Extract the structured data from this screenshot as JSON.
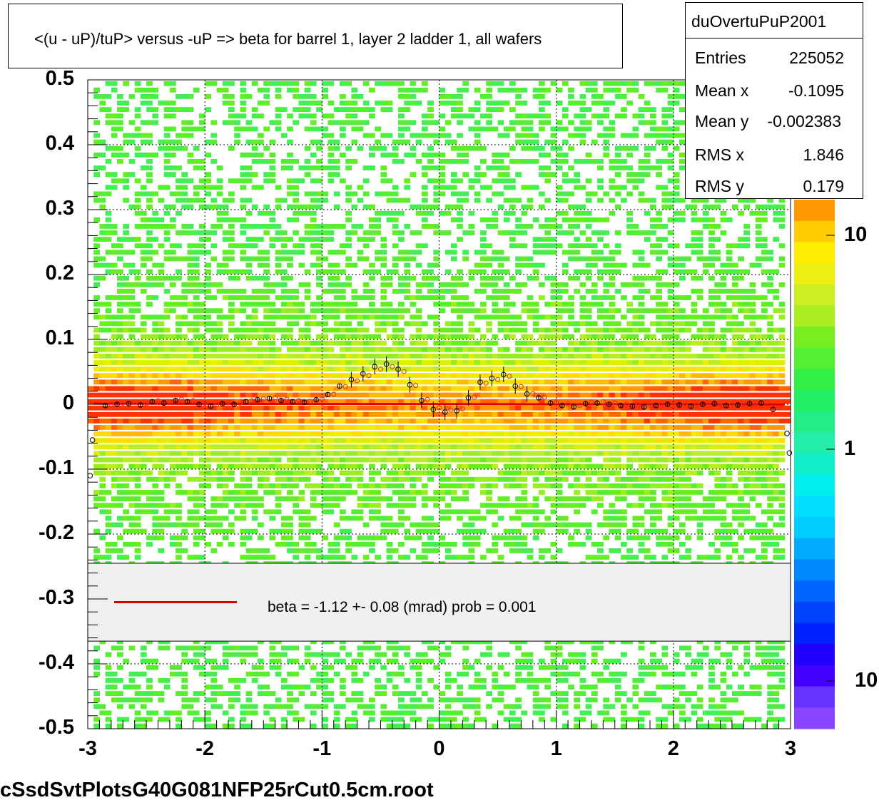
{
  "title": "<(u - uP)/tuP> versus  -uP => beta for barrel 1, layer 2 ladder 1, all wafers",
  "stats": {
    "name": "duOvertuPuP2001",
    "rows": [
      {
        "label": "Entries",
        "value": "225052"
      },
      {
        "label": "Mean x",
        "value": "-0.1095"
      },
      {
        "label": "Mean y",
        "value": "-0.002383"
      },
      {
        "label": "RMS x",
        "value": "1.846"
      },
      {
        "label": "RMS y",
        "value": "0.179"
      }
    ]
  },
  "legend": {
    "text": "beta =   -1.12 +-  0.08 (mrad) prob = 0.001",
    "line_color": "#dd0000"
  },
  "footer": "cSsdSvtPlotsG40G081NFP25rCut0.5cm.root",
  "colors": {
    "fit_line": "#dd0000",
    "grid": "#000000",
    "legend_bg": "#f0f0f0"
  },
  "chart_data": {
    "type": "heatmap",
    "xlim": [
      -3,
      3
    ],
    "ylim": [
      -0.5,
      0.5
    ],
    "x_ticks": [
      "-3",
      "-2",
      "-1",
      "0",
      "1",
      "2",
      "3"
    ],
    "y_ticks": [
      "0.5",
      "0.4",
      "0.3",
      "0.2",
      "0.1",
      "0",
      "-0.1",
      "-0.2",
      "-0.3",
      "-0.4",
      "-0.5"
    ],
    "z_ticks": [
      "10",
      "1",
      "10"
    ],
    "grid": true,
    "fit_line": {
      "x": [
        -2.95,
        2.95
      ],
      "y": [
        0.0009,
        -0.0004
      ]
    },
    "profile": {
      "x": [
        -2.85,
        -2.75,
        -2.65,
        -2.55,
        -2.45,
        -2.35,
        -2.25,
        -2.15,
        -2.05,
        -1.95,
        -1.85,
        -1.75,
        -1.65,
        -1.55,
        -1.45,
        -1.35,
        -1.25,
        -1.15,
        -1.05,
        -0.95,
        -0.85,
        -0.75,
        -0.65,
        -0.55,
        -0.45,
        -0.35,
        -0.25,
        -0.15,
        -0.05,
        0.05,
        0.15,
        0.25,
        0.35,
        0.45,
        0.55,
        0.65,
        0.75,
        0.85,
        0.95,
        1.05,
        1.15,
        1.25,
        1.35,
        1.45,
        1.55,
        1.65,
        1.75,
        1.85,
        1.95,
        2.05,
        2.15,
        2.25,
        2.35,
        2.45,
        2.55,
        2.65,
        2.75,
        2.85
      ],
      "y": [
        -0.002,
        0.0,
        0.001,
        -0.001,
        0.004,
        0.002,
        0.006,
        0.004,
        0.0,
        -0.003,
        0.001,
        0.0,
        0.004,
        0.007,
        0.009,
        0.006,
        0.004,
        0.003,
        0.007,
        0.015,
        0.028,
        0.038,
        0.047,
        0.058,
        0.062,
        0.054,
        0.03,
        0.006,
        -0.008,
        -0.012,
        -0.01,
        0.01,
        0.034,
        0.04,
        0.046,
        0.028,
        0.016,
        0.01,
        0.002,
        -0.002,
        -0.004,
        0.001,
        0.002,
        0.0,
        -0.002,
        -0.003,
        -0.004,
        -0.002,
        0.0,
        -0.001,
        -0.003,
        0.0,
        0.001,
        -0.002,
        -0.001,
        0.001,
        0.002,
        -0.008
      ],
      "edge_points": {
        "x": [
          -2.98,
          -2.96,
          2.97,
          2.99
        ],
        "y": [
          -0.11,
          -0.055,
          -0.045,
          -0.075
        ]
      }
    },
    "legend_box_yrange": [
      -0.245,
      -0.365
    ],
    "note_colors": "palette purple (low) to red (high), log scale"
  }
}
